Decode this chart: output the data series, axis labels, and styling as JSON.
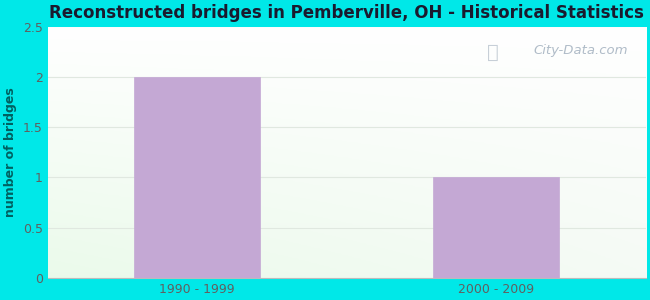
{
  "title": "Reconstructed bridges in Pemberville, OH - Historical Statistics",
  "categories": [
    "1990 - 1999",
    "2000 - 2009"
  ],
  "values": [
    2,
    1
  ],
  "bar_color": "#c4a8d4",
  "ylabel": "number of bridges",
  "ylim": [
    0,
    2.5
  ],
  "yticks": [
    0,
    0.5,
    1,
    1.5,
    2,
    2.5
  ],
  "background_outer": "#00e8e8",
  "grid_color": "#e0e8e0",
  "title_color": "#1a1a2e",
  "axis_label_color": "#006060",
  "tick_label_color": "#606060",
  "watermark_text": "City-Data.com",
  "watermark_color": "#b0bcc8",
  "title_fontsize": 12,
  "ylabel_fontsize": 9,
  "tick_fontsize": 9
}
